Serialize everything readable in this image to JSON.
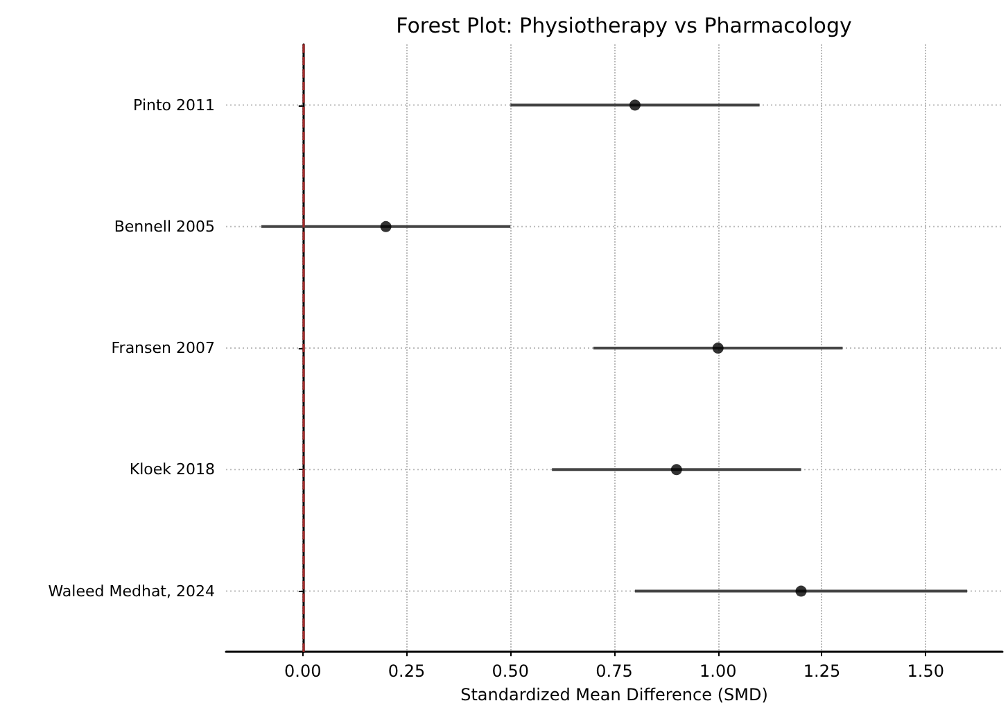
{
  "chart_data": {
    "type": "scatter",
    "orientation": "horizontal",
    "title": "Forest Plot: Physiotherapy vs Pharmacology",
    "xlabel": "Standardized Mean Difference (SMD)",
    "categories": [
      "Pinto 2011",
      "Bennell 2005",
      "Fransen 2007",
      "Kloek 2018",
      "Waleed Medhat, 2024"
    ],
    "series": [
      {
        "color": "#000000",
        "values": [
          0.8,
          0.2,
          1.0,
          0.9,
          1.2
        ],
        "errors": [
          [
            0.5,
            1.1
          ],
          [
            -0.1,
            0.5
          ],
          [
            0.7,
            1.3
          ],
          [
            0.6,
            1.2
          ],
          [
            0.8,
            1.6
          ]
        ]
      }
    ],
    "xlim": [
      -0.185,
      1.685
    ],
    "xticks": [
      {
        "value": 0,
        "label": "0.00"
      },
      {
        "value": 0.25,
        "label": "0.25"
      },
      {
        "value": 0.5,
        "label": "0.50"
      },
      {
        "value": 0.75,
        "label": "0.75"
      },
      {
        "value": 1.0,
        "label": "1.00"
      },
      {
        "value": 1.25,
        "label": "1.25"
      },
      {
        "value": 1.5,
        "label": "1.50"
      }
    ],
    "ref_lines": [
      {
        "axis": "x",
        "value": 0,
        "color": "#a52a2a",
        "line_style": "dashed"
      }
    ],
    "grid": true,
    "marker": "circle"
  }
}
